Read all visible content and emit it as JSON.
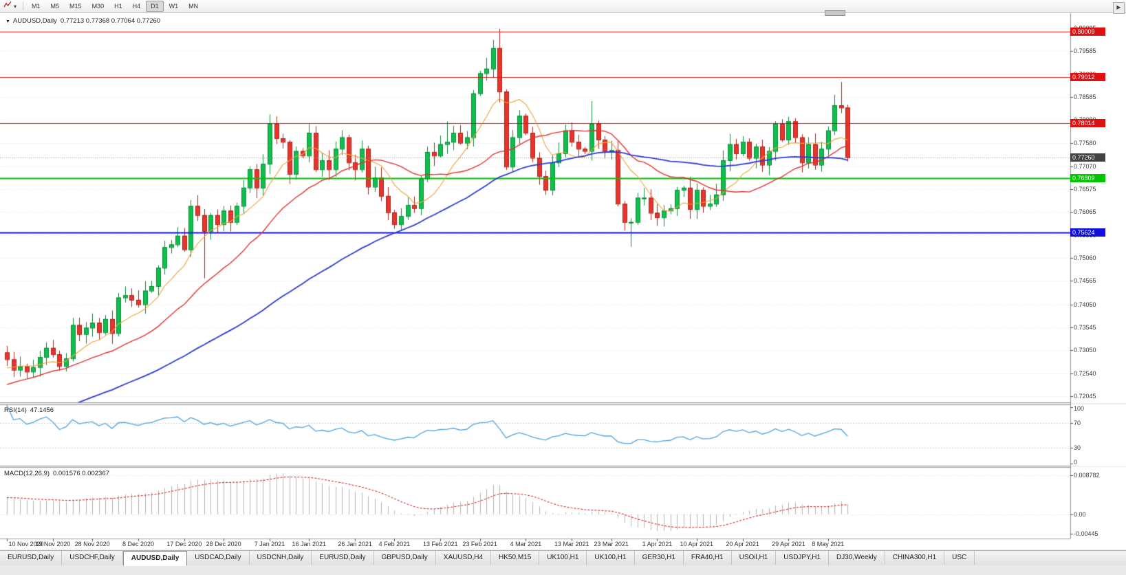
{
  "icons": {
    "chart_dropdown": "▼",
    "toolbar_caret": "▾",
    "tabs_scroll_right": "▶"
  },
  "toolbar": {
    "timeframes": [
      "M1",
      "M5",
      "M15",
      "M30",
      "H1",
      "H4",
      "D1",
      "W1",
      "MN"
    ],
    "active_timeframe": "D1"
  },
  "chart": {
    "symbol_period": "AUDUSD,Daily",
    "ohlc_text": "0.77213 0.77368 0.77064 0.77260",
    "price_axis_ticks": [
      "0.80085",
      "0.79585",
      "0.79080",
      "0.78585",
      "0.78080",
      "0.77580",
      "0.77070",
      "0.76575",
      "0.76065",
      "0.75560",
      "0.75060",
      "0.74565",
      "0.74050",
      "0.73545",
      "0.73050",
      "0.72540",
      "0.72045"
    ],
    "hlines": [
      {
        "value": 0.80009,
        "label": "0.80009",
        "color": "#dd1111",
        "thickness": 1
      },
      {
        "value": 0.79012,
        "label": "0.79012",
        "color": "#dd1111",
        "thickness": 1
      },
      {
        "value": 0.78014,
        "label": "0.78014",
        "color": "#dd1111",
        "thickness": 1
      },
      {
        "value": 0.76809,
        "label": "0.76809",
        "color": "#00c400",
        "thickness": 2
      },
      {
        "value": 0.75624,
        "label": "0.75624",
        "color": "#1010dd",
        "thickness": 2
      }
    ],
    "current_price": {
      "value": 0.7726,
      "label": "0.77260",
      "bg": "#424242"
    },
    "date_ticks": [
      {
        "i": 0,
        "label": "10 Nov 2020"
      },
      {
        "i": 7,
        "label": "19 Nov 2020"
      },
      {
        "i": 13,
        "label": "28 Nov 2020"
      },
      {
        "i": 20,
        "label": "8 Dec 2020"
      },
      {
        "i": 27,
        "label": "17 Dec 2020"
      },
      {
        "i": 33,
        "label": "28 Dec 2020"
      },
      {
        "i": 40,
        "label": "7 Jan 2021"
      },
      {
        "i": 46,
        "label": "16 Jan 2021"
      },
      {
        "i": 53,
        "label": "26 Jan 2021"
      },
      {
        "i": 59,
        "label": "4 Feb 2021"
      },
      {
        "i": 66,
        "label": "13 Feb 2021"
      },
      {
        "i": 72,
        "label": "23 Feb 2021"
      },
      {
        "i": 79,
        "label": "4 Mar 2021"
      },
      {
        "i": 86,
        "label": "13 Mar 2021"
      },
      {
        "i": 92,
        "label": "23 Mar 2021"
      },
      {
        "i": 99,
        "label": "1 Apr 2021"
      },
      {
        "i": 105,
        "label": "10 Apr 2021"
      },
      {
        "i": 112,
        "label": "20 Apr 2021"
      },
      {
        "i": 119,
        "label": "29 Apr 2021"
      },
      {
        "i": 125,
        "label": "8 May 2021"
      }
    ]
  },
  "rsi": {
    "title": "RSI(14)",
    "value": "47.1456",
    "axis_labels": [
      "100",
      "70",
      "30",
      "0"
    ],
    "levels": [
      70,
      30
    ],
    "line_color": "#4aa4e0"
  },
  "macd": {
    "title": "MACD(12,26,9)",
    "values_text": "0.001576 0.002367",
    "axis_labels": [
      "0.008782",
      "0.00",
      "-0.00445"
    ],
    "histogram_color": "#b4b4b4",
    "signal_color": "#d01010",
    "range": [
      0.0105,
      -0.0055
    ]
  },
  "chart_data": {
    "type": "candlestick",
    "symbol": "AUDUSD",
    "period": "Daily",
    "first_open": 0.73,
    "closes": [
      0.7285,
      0.7262,
      0.727,
      0.7258,
      0.7268,
      0.729,
      0.731,
      0.7296,
      0.727,
      0.7287,
      0.736,
      0.734,
      0.7354,
      0.7365,
      0.7344,
      0.7373,
      0.7342,
      0.742,
      0.7425,
      0.7415,
      0.7405,
      0.7435,
      0.7445,
      0.7485,
      0.753,
      0.7536,
      0.7555,
      0.7525,
      0.762,
      0.76,
      0.7565,
      0.76,
      0.758,
      0.761,
      0.7585,
      0.762,
      0.766,
      0.77,
      0.766,
      0.7712,
      0.78,
      0.7768,
      0.776,
      0.769,
      0.774,
      0.773,
      0.778,
      0.77,
      0.772,
      0.77,
      0.7745,
      0.777,
      0.7715,
      0.77,
      0.7745,
      0.7662,
      0.7682,
      0.7642,
      0.7606,
      0.758,
      0.7598,
      0.7622,
      0.7615,
      0.768,
      0.7738,
      0.773,
      0.7755,
      0.776,
      0.778,
      0.7758,
      0.777,
      0.7866,
      0.791,
      0.792,
      0.7965,
      0.787,
      0.7706,
      0.777,
      0.7817,
      0.778,
      0.7725,
      0.7685,
      0.7655,
      0.7715,
      0.7735,
      0.7785,
      0.776,
      0.7745,
      0.774,
      0.78,
      0.7765,
      0.774,
      0.7742,
      0.7625,
      0.7585,
      0.7585,
      0.7638,
      0.7638,
      0.7605,
      0.7595,
      0.761,
      0.7615,
      0.7655,
      0.766,
      0.7613,
      0.7655,
      0.762,
      0.7625,
      0.7645,
      0.772,
      0.7755,
      0.7735,
      0.776,
      0.7725,
      0.775,
      0.771,
      0.774,
      0.78,
      0.7765,
      0.7805,
      0.777,
      0.7715,
      0.7755,
      0.771,
      0.7745,
      0.7785,
      0.784,
      0.7835,
      0.7726
    ],
    "wick_overrides": {
      "30": {
        "l": 0.7462
      },
      "40": {
        "h": 0.782
      },
      "67": {
        "h": 0.7805
      },
      "75": {
        "h": 0.8007
      },
      "89": {
        "h": 0.7849
      },
      "95": {
        "l": 0.7531
      },
      "119": {
        "h": 0.7815
      },
      "127": {
        "h": 0.7891
      }
    },
    "wick_seed": 11,
    "ma_warmup": {
      "start": 0.698,
      "end": 0.728,
      "count": 55
    },
    "ma_periods": {
      "fast": 8,
      "medium": 21,
      "slow": 55
    },
    "ma_colors": {
      "fast": "#efa33a",
      "medium": "#e03232",
      "slow": "#2d3bd1"
    },
    "up_color": "#0fbf4e",
    "up_border": "#0a8a38",
    "down_color": "#e8342a",
    "down_border": "#a8231c",
    "price_range": [
      0.7191,
      0.8037
    ]
  },
  "tabs": {
    "active_index": 2,
    "items": [
      {
        "label": "EURUSD,Daily"
      },
      {
        "label": "USDCHF,Daily"
      },
      {
        "label": "AUDUSD,Daily"
      },
      {
        "label": "USDCAD,Daily"
      },
      {
        "label": "USDCNH,Daily"
      },
      {
        "label": "EURUSD,Daily"
      },
      {
        "label": "GBPUSD,Daily"
      },
      {
        "label": "XAUUSD,H4"
      },
      {
        "label": "HK50,M15"
      },
      {
        "label": "UK100,H1"
      },
      {
        "label": "UK100,H1"
      },
      {
        "label": "GER30,H1"
      },
      {
        "label": "FRA40,H1"
      },
      {
        "label": "USOil,H1"
      },
      {
        "label": "USDJPY,H1"
      },
      {
        "label": "DJ30,Weekly"
      },
      {
        "label": "CHINA300,H1"
      },
      {
        "label": "USC"
      }
    ]
  }
}
